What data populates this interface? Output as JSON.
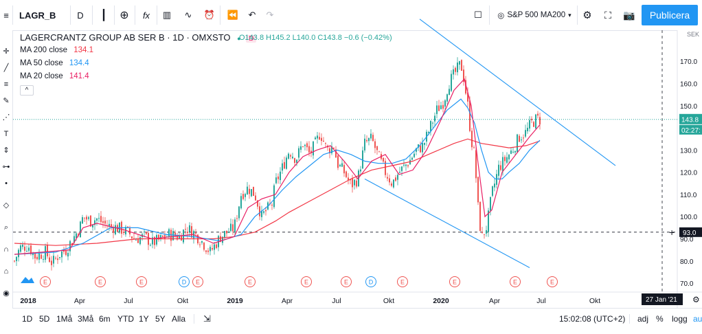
{
  "toolbar": {
    "symbol": "LAGR_B",
    "interval": "D",
    "compare_label": "S&P 500 MA200",
    "publish_label": "Publicera"
  },
  "legend": {
    "title": "LAGERCRANTZ GROUP AB SER B · 1D · OMXSTO",
    "badge": "D",
    "ohlc": "O143.8  H145.2  L140.0  C143.8  −0.6 (−0.42%)",
    "ma200_label": "MA 200 close",
    "ma200_value": "134.1",
    "ma50_label": "MA 50 close",
    "ma50_value": "134.4",
    "ma20_label": "MA 20 close",
    "ma20_value": "141.4",
    "collapse": "^"
  },
  "price_axis": {
    "currency": "SEK",
    "last_price": "143.8",
    "countdown": "02:27:",
    "crosshair_price": "93.0"
  },
  "time_axis": {
    "crosshair_date": "27 Jan '21"
  },
  "bottombar": {
    "ranges": [
      "1D",
      "5D",
      "1Må",
      "3Må",
      "6m",
      "YTD",
      "1Y",
      "5Y",
      "Alla"
    ],
    "clock": "15:02:08 (UTC+2)",
    "adj": "adj",
    "percent": "%",
    "log": "logg",
    "auto": "au"
  },
  "colors": {
    "up": "#26a69a",
    "down": "#ef5350",
    "ma200": "#f23645",
    "ma50": "#2196f3",
    "ma20": "#e91e63",
    "trendline": "#2196f3",
    "accent": "#2196f3"
  },
  "chart_data": {
    "type": "candlestick",
    "y_axis_ticks": [
      170.0,
      160.0,
      150.0,
      140.0,
      130.0,
      120.0,
      110.0,
      100.0,
      90.0,
      80.0,
      70.0
    ],
    "x_axis_ticks": [
      "2018",
      "Apr",
      "Jul",
      "Okt",
      "2019",
      "Apr",
      "Jul",
      "Okt",
      "2020",
      "Apr",
      "Jul",
      "Okt",
      "2"
    ],
    "ylim": [
      66,
      184
    ],
    "close_path": [
      [
        0,
        80
      ],
      [
        8,
        86
      ],
      [
        20,
        87
      ],
      [
        30,
        82
      ],
      [
        45,
        84
      ],
      [
        55,
        79
      ],
      [
        65,
        83
      ],
      [
        75,
        85
      ],
      [
        85,
        90
      ],
      [
        95,
        95
      ],
      [
        100,
        100
      ],
      [
        110,
        98
      ],
      [
        120,
        99
      ],
      [
        135,
        96
      ],
      [
        150,
        95
      ],
      [
        165,
        93
      ],
      [
        175,
        90
      ],
      [
        190,
        91
      ],
      [
        200,
        88
      ],
      [
        215,
        90
      ],
      [
        225,
        92
      ],
      [
        240,
        91
      ],
      [
        250,
        95
      ],
      [
        260,
        93
      ],
      [
        270,
        90
      ],
      [
        280,
        86
      ],
      [
        285,
        84
      ],
      [
        300,
        91
      ],
      [
        320,
        95
      ],
      [
        330,
        110
      ],
      [
        340,
        113
      ],
      [
        350,
        110
      ],
      [
        360,
        100
      ],
      [
        375,
        106
      ],
      [
        380,
        115
      ],
      [
        390,
        122
      ],
      [
        400,
        130
      ],
      [
        410,
        126
      ],
      [
        420,
        133
      ],
      [
        430,
        128
      ],
      [
        440,
        134
      ],
      [
        445,
        138
      ],
      [
        455,
        130
      ],
      [
        465,
        132
      ],
      [
        470,
        124
      ],
      [
        480,
        120
      ],
      [
        490,
        114
      ],
      [
        500,
        117
      ],
      [
        510,
        133
      ],
      [
        520,
        135
      ],
      [
        530,
        127
      ],
      [
        540,
        120
      ],
      [
        550,
        115
      ],
      [
        560,
        120
      ],
      [
        575,
        125
      ],
      [
        585,
        130
      ],
      [
        595,
        132
      ],
      [
        605,
        140
      ],
      [
        615,
        148
      ],
      [
        625,
        152
      ],
      [
        632,
        160
      ],
      [
        640,
        164
      ],
      [
        648,
        168
      ],
      [
        652,
        167
      ],
      [
        660,
        150
      ],
      [
        665,
        135
      ],
      [
        670,
        127
      ],
      [
        675,
        104
      ],
      [
        680,
        90
      ],
      [
        688,
        96
      ],
      [
        695,
        110
      ],
      [
        705,
        122
      ],
      [
        715,
        126
      ],
      [
        725,
        130
      ],
      [
        735,
        136
      ],
      [
        745,
        138
      ],
      [
        752,
        142
      ],
      [
        760,
        144
      ],
      [
        765,
        143.8
      ]
    ],
    "ma20": [
      [
        0,
        83
      ],
      [
        40,
        84
      ],
      [
        80,
        85
      ],
      [
        100,
        95
      ],
      [
        120,
        97
      ],
      [
        160,
        94
      ],
      [
        200,
        90
      ],
      [
        230,
        91
      ],
      [
        260,
        92
      ],
      [
        290,
        88
      ],
      [
        320,
        91
      ],
      [
        340,
        104
      ],
      [
        360,
        108
      ],
      [
        380,
        110
      ],
      [
        400,
        120
      ],
      [
        420,
        127
      ],
      [
        440,
        130
      ],
      [
        460,
        132
      ],
      [
        480,
        125
      ],
      [
        500,
        117
      ],
      [
        520,
        125
      ],
      [
        540,
        128
      ],
      [
        560,
        119
      ],
      [
        580,
        121
      ],
      [
        600,
        130
      ],
      [
        620,
        143
      ],
      [
        640,
        157
      ],
      [
        655,
        162
      ],
      [
        665,
        150
      ],
      [
        675,
        124
      ],
      [
        685,
        100
      ],
      [
        695,
        103
      ],
      [
        710,
        120
      ],
      [
        730,
        128
      ],
      [
        750,
        136
      ],
      [
        765,
        141.4
      ]
    ],
    "ma50": [
      [
        0,
        83
      ],
      [
        60,
        84
      ],
      [
        100,
        88
      ],
      [
        140,
        95
      ],
      [
        180,
        95
      ],
      [
        220,
        92
      ],
      [
        260,
        91
      ],
      [
        300,
        89
      ],
      [
        330,
        92
      ],
      [
        350,
        100
      ],
      [
        370,
        105
      ],
      [
        390,
        112
      ],
      [
        410,
        118
      ],
      [
        430,
        123
      ],
      [
        450,
        128
      ],
      [
        470,
        130
      ],
      [
        490,
        128
      ],
      [
        510,
        125
      ],
      [
        530,
        124
      ],
      [
        550,
        124
      ],
      [
        570,
        126
      ],
      [
        590,
        132
      ],
      [
        610,
        140
      ],
      [
        630,
        148
      ],
      [
        650,
        153
      ],
      [
        660,
        149
      ],
      [
        670,
        142
      ],
      [
        680,
        130
      ],
      [
        690,
        120
      ],
      [
        700,
        117
      ],
      [
        710,
        117
      ],
      [
        720,
        120
      ],
      [
        735,
        124
      ],
      [
        750,
        130
      ],
      [
        765,
        134.4
      ]
    ],
    "ma200": [
      [
        0,
        88
      ],
      [
        60,
        87
      ],
      [
        120,
        88
      ],
      [
        180,
        90
      ],
      [
        240,
        90
      ],
      [
        290,
        90
      ],
      [
        320,
        91
      ],
      [
        350,
        93
      ],
      [
        380,
        98
      ],
      [
        400,
        102
      ],
      [
        430,
        107
      ],
      [
        460,
        112
      ],
      [
        490,
        117
      ],
      [
        520,
        121
      ],
      [
        550,
        123
      ],
      [
        580,
        125
      ],
      [
        610,
        129
      ],
      [
        640,
        133
      ],
      [
        660,
        135
      ],
      [
        680,
        133
      ],
      [
        700,
        132
      ],
      [
        720,
        131
      ],
      [
        745,
        132
      ],
      [
        765,
        134.1
      ]
    ],
    "trendlines": [
      {
        "from": [
          590,
          189
        ],
        "to": [
          875,
          123
        ]
      },
      {
        "from": [
          510,
          117
        ],
        "to": [
          750,
          77
        ]
      }
    ],
    "earnings_markers": [
      "E",
      "E",
      "E",
      "D",
      "E",
      "E",
      "E",
      "E",
      "D",
      "E",
      "E",
      "E",
      "E"
    ],
    "last_price_line": 143.8,
    "crosshair_price": 93.0
  }
}
